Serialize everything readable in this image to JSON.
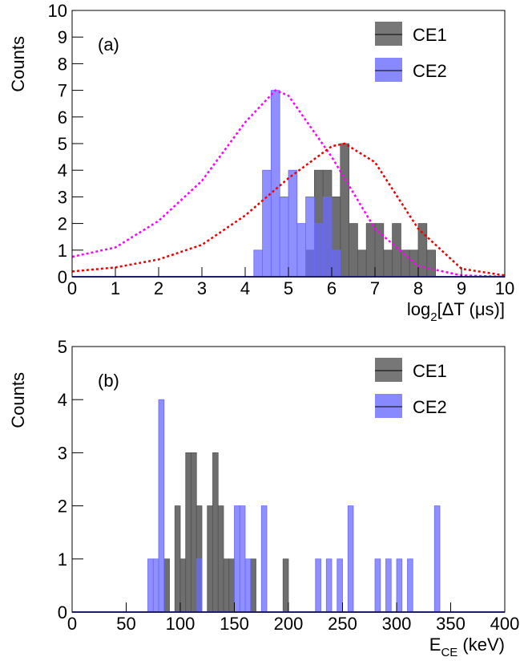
{
  "chart_data": [
    {
      "type": "histogram",
      "annotation": "(a)",
      "y_label": "Counts",
      "x_label": [
        "log",
        "2",
        "[ΔT (μs)]"
      ],
      "xlim": [
        0,
        10
      ],
      "xticks": [
        0,
        1,
        2,
        3,
        4,
        5,
        6,
        7,
        8,
        9,
        10
      ],
      "ylim": [
        0,
        10
      ],
      "yticks": [
        0,
        1,
        2,
        3,
        4,
        5,
        6,
        7,
        8,
        9,
        10
      ],
      "bins": [
        4.0,
        4.2,
        4.4,
        4.6,
        4.8,
        5.0,
        5.2,
        5.4,
        5.6,
        5.8,
        6.0,
        6.2,
        6.4,
        6.6,
        6.8,
        7.0,
        7.2,
        7.4,
        7.6,
        7.8,
        8.0,
        8.2,
        8.4
      ],
      "series": [
        {
          "name": "CE1",
          "color": "#555555",
          "values": [
            0,
            0,
            0,
            0,
            0,
            0,
            0,
            1,
            4,
            4,
            3,
            5,
            2,
            1,
            2,
            2,
            1,
            2,
            1,
            1,
            2,
            1
          ]
        },
        {
          "name": "CE2",
          "color": "#6a6aff",
          "values": [
            0,
            1,
            4,
            7,
            3,
            4,
            2,
            3,
            2,
            3,
            1,
            0,
            0,
            0,
            0,
            0,
            0,
            0,
            0,
            0,
            0,
            0
          ]
        }
      ],
      "lines": [
        {
          "color": "#ff00ff",
          "x": [
            0,
            1,
            2,
            3,
            4,
            4.7,
            5,
            6,
            7,
            8,
            9,
            10
          ],
          "values": [
            0.75,
            1.1,
            2.1,
            3.6,
            5.8,
            7,
            6.8,
            4.5,
            1.8,
            0.4,
            0.05,
            0
          ]
        },
        {
          "color": "#ee0000",
          "x": [
            0,
            1,
            2,
            3,
            4,
            5,
            6,
            6.3,
            7,
            8,
            9,
            10
          ],
          "values": [
            0.2,
            0.35,
            0.65,
            1.2,
            2.3,
            3.7,
            4.9,
            5,
            4.3,
            1.8,
            0.3,
            0.05
          ]
        }
      ]
    },
    {
      "type": "histogram",
      "annotation": "(b)",
      "y_label": "Counts",
      "x_label": [
        "E",
        "CE",
        " (keV)"
      ],
      "xlim": [
        0,
        400
      ],
      "xticks": [
        0,
        50,
        100,
        150,
        200,
        250,
        300,
        350,
        400
      ],
      "ylim": [
        0,
        5
      ],
      "yticks": [
        0,
        1,
        2,
        3,
        4,
        5
      ],
      "bins": [
        70,
        75,
        80,
        85,
        90,
        95,
        100,
        105,
        110,
        115,
        120,
        125,
        130,
        135,
        140,
        145,
        150,
        155,
        160,
        165,
        170,
        175,
        180,
        185,
        190,
        195,
        200,
        205,
        210,
        215,
        220,
        225,
        230,
        235,
        240,
        245,
        250,
        255,
        260,
        265,
        270,
        275,
        280,
        285,
        290,
        295,
        300,
        305,
        310,
        315,
        320,
        325,
        330,
        335,
        340
      ],
      "series": [
        {
          "name": "CE1",
          "color": "#555555",
          "values": [
            0,
            0,
            0,
            1,
            0,
            2,
            1,
            3,
            3,
            2,
            0,
            2,
            3,
            2,
            1,
            1,
            0,
            0,
            0,
            1,
            0,
            0,
            0,
            0,
            0,
            1,
            0,
            0,
            0,
            0,
            0,
            0,
            0,
            0,
            0,
            0,
            0,
            0,
            0,
            0,
            0,
            0,
            0,
            0,
            0,
            0,
            0,
            0,
            0,
            0,
            0,
            0,
            0,
            0
          ]
        },
        {
          "name": "CE2",
          "color": "#6a6aff",
          "values": [
            1,
            1,
            4,
            0,
            0,
            0,
            0,
            0,
            0,
            1,
            0,
            0,
            0,
            0,
            0,
            0,
            2,
            2,
            1,
            0,
            0,
            2,
            0,
            0,
            0,
            0,
            0,
            0,
            0,
            0,
            0,
            1,
            0,
            1,
            0,
            1,
            0,
            2,
            0,
            0,
            0,
            0,
            1,
            0,
            1,
            0,
            1,
            0,
            1,
            0,
            0,
            0,
            0,
            2
          ]
        }
      ]
    }
  ]
}
